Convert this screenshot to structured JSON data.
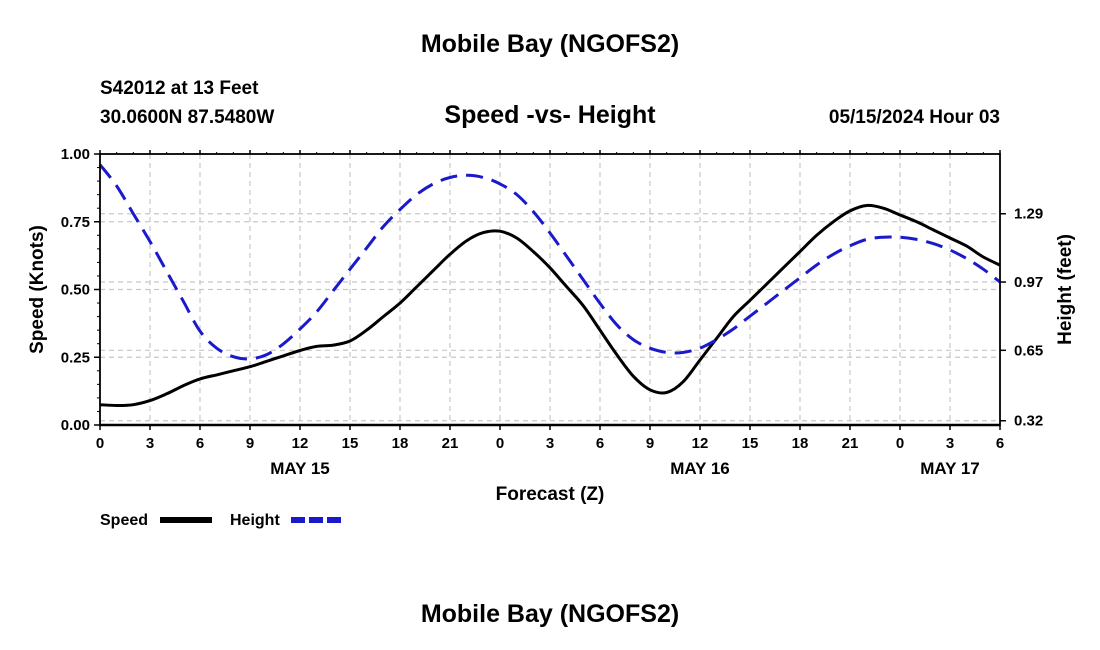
{
  "header": {
    "title": "Mobile Bay (NGOFS2)",
    "station": "S42012 at 13 Feet",
    "coords": "30.0600N  87.5480W",
    "chart_title": "Speed -vs- Height",
    "datetime": "05/15/2024 Hour 03"
  },
  "footer": {
    "title": "Mobile Bay (NGOFS2)"
  },
  "chart_data": {
    "type": "line",
    "title": "Speed -vs- Height",
    "xlabel": "Forecast (Z)",
    "ylabel": "Speed (Knots)",
    "y2label": "Height (feet)",
    "x_ticks": [
      "0",
      "3",
      "6",
      "9",
      "12",
      "15",
      "18",
      "21",
      "0",
      "3",
      "6",
      "9",
      "12",
      "15",
      "18",
      "21",
      "0",
      "3",
      "6"
    ],
    "date_labels": [
      {
        "label": "MAY 15",
        "hour": 12
      },
      {
        "label": "MAY 16",
        "hour": 36
      },
      {
        "label": "MAY 17",
        "hour": 60
      }
    ],
    "xlim": [
      0,
      54
    ],
    "ylim": [
      0,
      1
    ],
    "y_ticks": [
      "0.00",
      "0.25",
      "0.50",
      "0.75",
      "1.00"
    ],
    "y2lim": [
      0.3,
      1.57
    ],
    "y2_ticks": [
      "0.32",
      "0.65",
      "0.97",
      "1.29"
    ],
    "grid": true,
    "legend_position": "bottom-left",
    "series": [
      {
        "name": "Speed",
        "axis": "left",
        "color": "#000000",
        "style": "solid",
        "hours": [
          0,
          1,
          2,
          3,
          4,
          5,
          6,
          7,
          8,
          9,
          10,
          11,
          12,
          13,
          14,
          15,
          16,
          17,
          18,
          19,
          20,
          21,
          22,
          23,
          24,
          25,
          26,
          27,
          28,
          29,
          30,
          31,
          32,
          33,
          34,
          35,
          36,
          37,
          38,
          39,
          40,
          41,
          42,
          43,
          44,
          45,
          46,
          47,
          48,
          49,
          50,
          51,
          52,
          53,
          54
        ],
        "values": [
          0.075,
          0.072,
          0.075,
          0.09,
          0.115,
          0.145,
          0.17,
          0.185,
          0.2,
          0.215,
          0.235,
          0.255,
          0.275,
          0.29,
          0.295,
          0.31,
          0.35,
          0.4,
          0.45,
          0.51,
          0.57,
          0.63,
          0.68,
          0.71,
          0.715,
          0.69,
          0.64,
          0.58,
          0.51,
          0.44,
          0.35,
          0.26,
          0.18,
          0.13,
          0.12,
          0.16,
          0.24,
          0.32,
          0.4,
          0.46,
          0.52,
          0.58,
          0.64,
          0.7,
          0.75,
          0.79,
          0.81,
          0.8,
          0.775,
          0.75,
          0.72,
          0.69,
          0.66,
          0.62,
          0.59
        ]
      },
      {
        "name": "Height",
        "axis": "right",
        "color": "#1a1acc",
        "style": "dashed",
        "hours": [
          0,
          1,
          2,
          3,
          4,
          5,
          6,
          7,
          8,
          9,
          10,
          11,
          12,
          13,
          14,
          15,
          16,
          17,
          18,
          19,
          20,
          21,
          22,
          23,
          24,
          25,
          26,
          27,
          28,
          29,
          30,
          31,
          32,
          33,
          34,
          35,
          36,
          37,
          38,
          39,
          40,
          41,
          42,
          43,
          44,
          45,
          46,
          47,
          48,
          49,
          50,
          51,
          52,
          53,
          54
        ],
        "values": [
          1.52,
          1.42,
          1.29,
          1.16,
          1.02,
          0.88,
          0.74,
          0.66,
          0.62,
          0.61,
          0.63,
          0.68,
          0.75,
          0.83,
          0.93,
          1.03,
          1.13,
          1.23,
          1.31,
          1.38,
          1.43,
          1.46,
          1.47,
          1.46,
          1.43,
          1.38,
          1.3,
          1.2,
          1.09,
          0.98,
          0.87,
          0.77,
          0.7,
          0.66,
          0.64,
          0.64,
          0.66,
          0.7,
          0.75,
          0.81,
          0.87,
          0.93,
          0.99,
          1.05,
          1.1,
          1.14,
          1.17,
          1.18,
          1.18,
          1.17,
          1.15,
          1.12,
          1.08,
          1.03,
          0.97
        ]
      }
    ]
  }
}
